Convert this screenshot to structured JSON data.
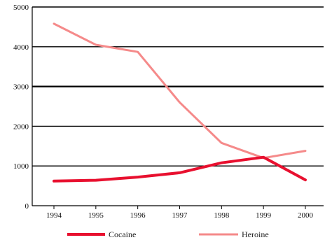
{
  "chart_data": {
    "type": "line",
    "title": "",
    "xlabel": "",
    "ylabel": "",
    "x": [
      "1994",
      "1995",
      "1996",
      "1997",
      "1998",
      "1999",
      "2000"
    ],
    "ylim": [
      0,
      5000
    ],
    "y_ticks": [
      "0",
      "1000",
      "2000",
      "3000",
      "4000",
      "5000"
    ],
    "grid": true,
    "legend": "bottom",
    "series": [
      {
        "name": "Cocaine",
        "color": "#e8102f",
        "values": [
          620,
          640,
          720,
          830,
          1080,
          1220,
          650
        ]
      },
      {
        "name": "Heroine",
        "color": "#f58a8a",
        "values": [
          4580,
          4050,
          3870,
          2600,
          1580,
          1200,
          1380
        ]
      }
    ]
  }
}
